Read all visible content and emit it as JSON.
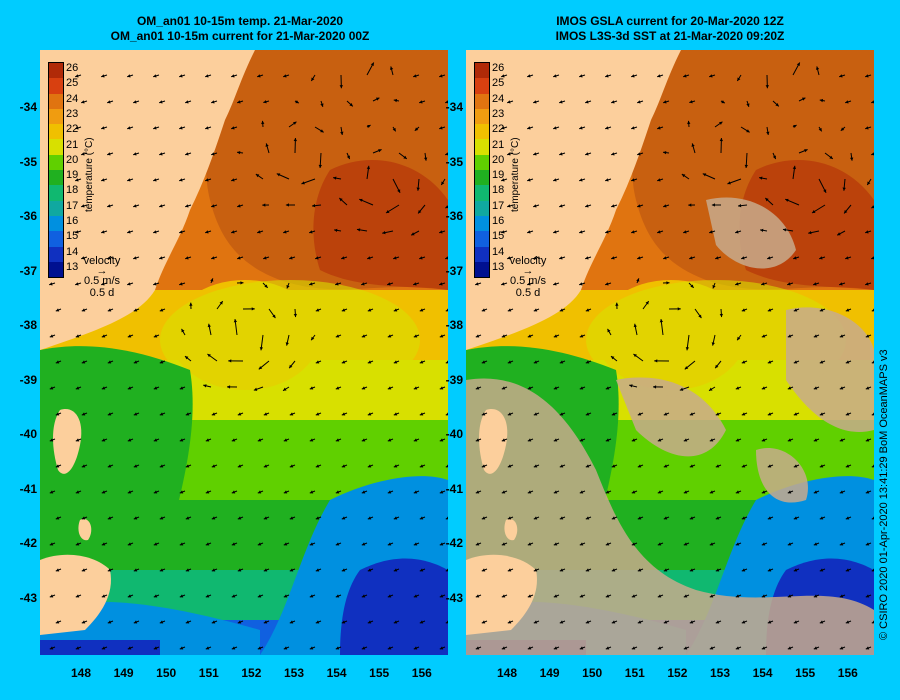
{
  "panels": [
    {
      "title_line1": "OM_an01 10-15m temp. 21-Mar-2020",
      "title_line2": "OM_an01 10-15m current for 21-Mar-2020 00Z",
      "legend_label": "temperature (°C)",
      "velocity_label": "velocity",
      "velocity_speed": "0.5 m/s",
      "velocity_time": "0.5 d",
      "missing_data": false
    },
    {
      "title_line1": "IMOS GSLA current for 20-Mar-2020 12Z",
      "title_line2": "IMOS L3S-3d SST at 21-Mar-2020 09:20Z",
      "legend_label": "temperature (°C)",
      "velocity_label": "velocity",
      "velocity_speed": "0.5 m/s",
      "velocity_time": "0.5 d",
      "missing_data": true
    }
  ],
  "legend_ticks": [
    "26",
    "25",
    "24",
    "23",
    "22",
    "21",
    "20",
    "19",
    "18",
    "17",
    "16",
    "15",
    "14",
    "13"
  ],
  "y_ticks": [
    "-34",
    "-35",
    "-36",
    "-37",
    "-38",
    "-39",
    "-40",
    "-41",
    "-42",
    "-43"
  ],
  "x_ticks": [
    "148",
    "149",
    "150",
    "151",
    "152",
    "153",
    "154",
    "155",
    "156"
  ],
  "credit": "© CSIRO 2020   01-Apr-2020 13:41:29 BoM OceanMAPS v3",
  "colors": {
    "background": "#00ccff",
    "land": "#fccf9c",
    "missing": "#c8aa8c",
    "t26": "#b02a08",
    "t24": "#e07410",
    "t22": "#f0c000",
    "t21": "#d8e000",
    "t20": "#60d000",
    "t19": "#20b020",
    "t18": "#10b870",
    "t17": "#10a8a0",
    "t16": "#0090e0",
    "t15": "#1060e0",
    "t14": "#1030c0",
    "t13": "#001090"
  }
}
